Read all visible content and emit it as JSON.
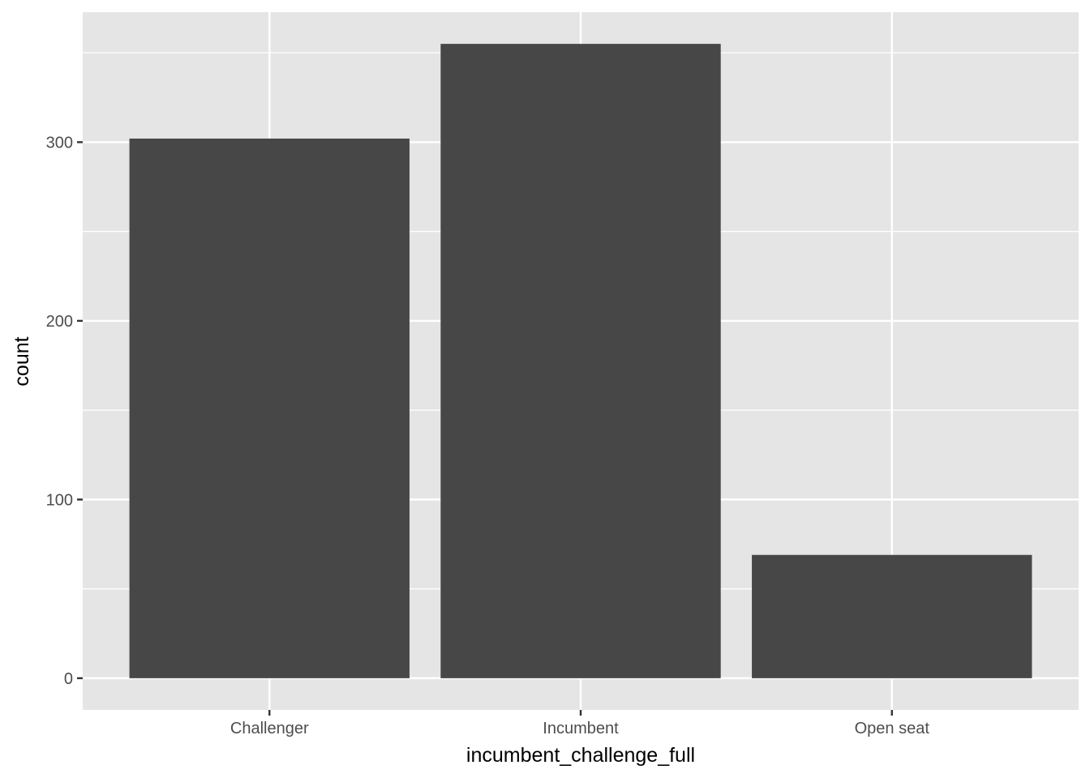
{
  "chart_data": {
    "type": "bar",
    "categories": [
      "Challenger",
      "Incumbent",
      "Open seat"
    ],
    "values": [
      302,
      355,
      69
    ],
    "xlabel": "incumbent_challenge_full",
    "ylabel": "count",
    "ylim": [
      -17.75,
      372.75
    ],
    "yticks": [
      0,
      100,
      200,
      300
    ],
    "ytick_labels": [
      "0",
      "100",
      "200",
      "300"
    ],
    "grid": true,
    "colors": {
      "panel": "#e5e5e5",
      "bar": "#474747",
      "grid": "#ffffff",
      "tick": "#333333"
    }
  }
}
